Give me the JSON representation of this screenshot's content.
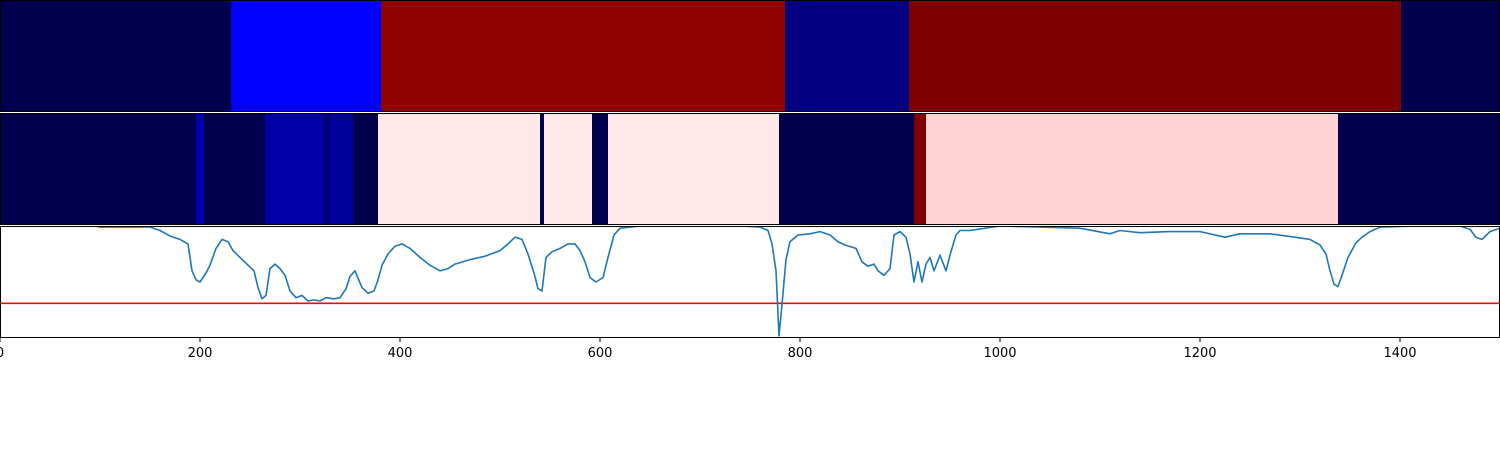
{
  "chart_data": [
    {
      "type": "heatmap",
      "xlim": [
        0,
        1500
      ],
      "segments": [
        {
          "start": 0,
          "end": 231,
          "color": "#00004c"
        },
        {
          "start": 231,
          "end": 381,
          "color": "#0000ff"
        },
        {
          "start": 381,
          "end": 785,
          "color": "#900000"
        },
        {
          "start": 785,
          "end": 909,
          "color": "#000080"
        },
        {
          "start": 909,
          "end": 1401,
          "color": "#7f0000"
        },
        {
          "start": 1401,
          "end": 1500,
          "color": "#00004c"
        }
      ]
    },
    {
      "type": "heatmap",
      "xlim": [
        0,
        1500
      ],
      "segments": [
        {
          "start": 0,
          "end": 196,
          "color": "#00004c"
        },
        {
          "start": 196,
          "end": 204,
          "color": "#0000b0"
        },
        {
          "start": 204,
          "end": 265,
          "color": "#00004c"
        },
        {
          "start": 265,
          "end": 325,
          "color": "#0000a8"
        },
        {
          "start": 325,
          "end": 329,
          "color": "#00006a"
        },
        {
          "start": 329,
          "end": 353,
          "color": "#00009a"
        },
        {
          "start": 353,
          "end": 378,
          "color": "#00004c"
        },
        {
          "start": 378,
          "end": 540,
          "color": "#ffe8e8"
        },
        {
          "start": 540,
          "end": 544,
          "color": "#00004c"
        },
        {
          "start": 544,
          "end": 592,
          "color": "#ffe8e8"
        },
        {
          "start": 592,
          "end": 608,
          "color": "#00004c"
        },
        {
          "start": 608,
          "end": 779,
          "color": "#ffe8e8"
        },
        {
          "start": 779,
          "end": 914,
          "color": "#00004c"
        },
        {
          "start": 914,
          "end": 926,
          "color": "#800000"
        },
        {
          "start": 926,
          "end": 1338,
          "color": "#ffd3d3"
        },
        {
          "start": 1338,
          "end": 1500,
          "color": "#00004c"
        }
      ]
    },
    {
      "type": "line",
      "xlim": [
        0,
        1500
      ],
      "ylim": [
        0,
        1
      ],
      "x_ticks": [
        "0",
        "200",
        "400",
        "600",
        "800",
        "1000",
        "1200",
        "1400"
      ],
      "x_tick_values": [
        0,
        200,
        400,
        600,
        800,
        1000,
        1200,
        1400
      ],
      "series": [
        {
          "color": "#1f77b4",
          "points": [
            [
              95,
              1.0
            ],
            [
              100,
              0.99
            ],
            [
              150,
              0.99
            ],
            [
              160,
              0.96
            ],
            [
              170,
              0.91
            ],
            [
              180,
              0.88
            ],
            [
              188,
              0.84
            ],
            [
              192,
              0.6
            ],
            [
              196,
              0.52
            ],
            [
              200,
              0.5
            ],
            [
              206,
              0.58
            ],
            [
              210,
              0.65
            ],
            [
              216,
              0.8
            ],
            [
              222,
              0.88
            ],
            [
              228,
              0.86
            ],
            [
              233,
              0.78
            ],
            [
              240,
              0.72
            ],
            [
              248,
              0.65
            ],
            [
              254,
              0.6
            ],
            [
              258,
              0.45
            ],
            [
              262,
              0.35
            ],
            [
              266,
              0.38
            ],
            [
              270,
              0.62
            ],
            [
              275,
              0.66
            ],
            [
              280,
              0.62
            ],
            [
              285,
              0.56
            ],
            [
              290,
              0.42
            ],
            [
              296,
              0.36
            ],
            [
              302,
              0.38
            ],
            [
              308,
              0.33
            ],
            [
              314,
              0.34
            ],
            [
              320,
              0.33
            ],
            [
              326,
              0.36
            ],
            [
              334,
              0.35
            ],
            [
              340,
              0.36
            ],
            [
              346,
              0.44
            ],
            [
              350,
              0.55
            ],
            [
              355,
              0.6
            ],
            [
              362,
              0.45
            ],
            [
              368,
              0.4
            ],
            [
              374,
              0.42
            ],
            [
              378,
              0.52
            ],
            [
              382,
              0.65
            ],
            [
              388,
              0.75
            ],
            [
              395,
              0.82
            ],
            [
              402,
              0.84
            ],
            [
              410,
              0.8
            ],
            [
              420,
              0.72
            ],
            [
              430,
              0.65
            ],
            [
              440,
              0.6
            ],
            [
              448,
              0.62
            ],
            [
              455,
              0.66
            ],
            [
              470,
              0.7
            ],
            [
              485,
              0.73
            ],
            [
              500,
              0.78
            ],
            [
              508,
              0.84
            ],
            [
              515,
              0.9
            ],
            [
              522,
              0.88
            ],
            [
              528,
              0.75
            ],
            [
              534,
              0.58
            ],
            [
              538,
              0.44
            ],
            [
              542,
              0.42
            ],
            [
              546,
              0.72
            ],
            [
              552,
              0.77
            ],
            [
              560,
              0.8
            ],
            [
              568,
              0.84
            ],
            [
              575,
              0.84
            ],
            [
              580,
              0.78
            ],
            [
              585,
              0.68
            ],
            [
              590,
              0.54
            ],
            [
              596,
              0.5
            ],
            [
              603,
              0.54
            ],
            [
              608,
              0.72
            ],
            [
              614,
              0.92
            ],
            [
              620,
              0.98
            ],
            [
              640,
              1.0
            ],
            [
              700,
              1.0
            ],
            [
              740,
              1.0
            ],
            [
              760,
              0.99
            ],
            [
              768,
              0.96
            ],
            [
              772,
              0.84
            ],
            [
              776,
              0.6
            ],
            [
              779,
              0.02
            ],
            [
              782,
              0.3
            ],
            [
              786,
              0.7
            ],
            [
              790,
              0.86
            ],
            [
              798,
              0.92
            ],
            [
              810,
              0.93
            ],
            [
              820,
              0.95
            ],
            [
              830,
              0.92
            ],
            [
              838,
              0.86
            ],
            [
              845,
              0.83
            ],
            [
              856,
              0.8
            ],
            [
              862,
              0.68
            ],
            [
              868,
              0.64
            ],
            [
              874,
              0.66
            ],
            [
              878,
              0.6
            ],
            [
              884,
              0.56
            ],
            [
              890,
              0.62
            ],
            [
              894,
              0.92
            ],
            [
              900,
              0.95
            ],
            [
              906,
              0.9
            ],
            [
              910,
              0.75
            ],
            [
              914,
              0.5
            ],
            [
              918,
              0.68
            ],
            [
              922,
              0.5
            ],
            [
              926,
              0.66
            ],
            [
              930,
              0.72
            ],
            [
              934,
              0.6
            ],
            [
              940,
              0.74
            ],
            [
              946,
              0.6
            ],
            [
              950,
              0.74
            ],
            [
              956,
              0.92
            ],
            [
              960,
              0.96
            ],
            [
              970,
              0.96
            ],
            [
              985,
              0.98
            ],
            [
              1000,
              1.0
            ],
            [
              1040,
              0.99
            ],
            [
              1080,
              0.98
            ],
            [
              1110,
              0.93
            ],
            [
              1120,
              0.96
            ],
            [
              1140,
              0.94
            ],
            [
              1170,
              0.95
            ],
            [
              1200,
              0.95
            ],
            [
              1225,
              0.9
            ],
            [
              1240,
              0.93
            ],
            [
              1270,
              0.93
            ],
            [
              1295,
              0.9
            ],
            [
              1310,
              0.88
            ],
            [
              1320,
              0.83
            ],
            [
              1326,
              0.75
            ],
            [
              1330,
              0.6
            ],
            [
              1334,
              0.48
            ],
            [
              1338,
              0.46
            ],
            [
              1342,
              0.56
            ],
            [
              1348,
              0.72
            ],
            [
              1356,
              0.85
            ],
            [
              1362,
              0.9
            ],
            [
              1370,
              0.95
            ],
            [
              1380,
              0.99
            ],
            [
              1420,
              1.0
            ],
            [
              1460,
              1.0
            ],
            [
              1470,
              0.97
            ],
            [
              1476,
              0.9
            ],
            [
              1482,
              0.88
            ],
            [
              1490,
              0.95
            ],
            [
              1500,
              0.98
            ]
          ]
        }
      ],
      "hlines": [
        {
          "y": 0.31,
          "color": "#ff0000"
        }
      ]
    }
  ]
}
